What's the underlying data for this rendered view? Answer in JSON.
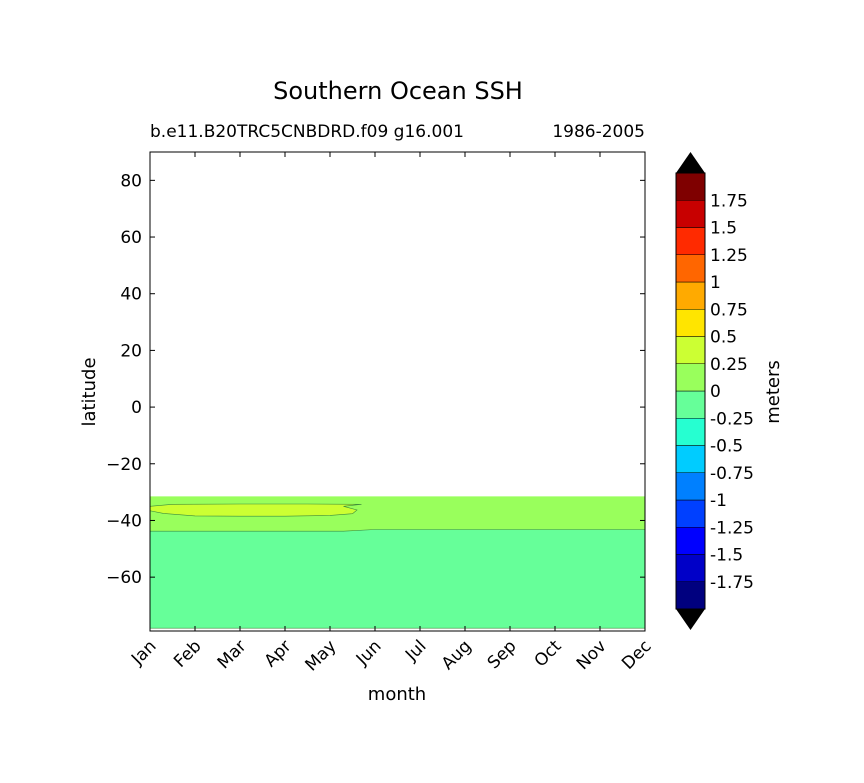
{
  "chart_data": {
    "type": "contour",
    "title": "Southern Ocean SSH",
    "subtitle_left": "b.e11.B20TRC5CNBDRD.f09 g16.001",
    "subtitle_right": "1986-2005",
    "xlabel": "month",
    "ylabel": "latitude",
    "months": [
      "Jan",
      "Feb",
      "Mar",
      "Apr",
      "May",
      "Jun",
      "Jul",
      "Aug",
      "Sep",
      "Oct",
      "Nov",
      "Dec"
    ],
    "ylim": [
      -79,
      90
    ],
    "yticks": [
      80,
      60,
      40,
      20,
      0,
      -20,
      -40,
      -60
    ],
    "ytick_labels": [
      "80",
      "60",
      "40",
      "20",
      "0",
      "−20",
      "−40",
      "−60"
    ],
    "data_lat_max": -31.5,
    "regions": [
      {
        "name": "0 to 0.25 m",
        "level_range": [
          0,
          0.25
        ],
        "color": "#99ff5c",
        "points": [
          [
            0,
            -31.5
          ],
          [
            11,
            -31.5
          ],
          [
            11,
            -43.2
          ],
          [
            5,
            -43.2
          ],
          [
            4.3,
            -43.8
          ],
          [
            0,
            -43.8
          ]
        ]
      },
      {
        "name": "-0.25 to 0 m",
        "level_range": [
          -0.25,
          0
        ],
        "color": "#66ff99",
        "points": [
          [
            0,
            -43.8
          ],
          [
            4.3,
            -43.8
          ],
          [
            5,
            -43.2
          ],
          [
            11,
            -43.2
          ],
          [
            11,
            -78
          ],
          [
            0,
            -78
          ]
        ]
      },
      {
        "name": "0.25 to 0.5 m",
        "level_range": [
          0.25,
          0.5
        ],
        "color": "#ccff33",
        "points": [
          [
            0,
            -35
          ],
          [
            0.5,
            -34.3
          ],
          [
            2,
            -34.2
          ],
          [
            3.5,
            -34.2
          ],
          [
            4.7,
            -34.3
          ],
          [
            4.3,
            -35
          ],
          [
            4.6,
            -36.3
          ],
          [
            4.5,
            -37.6
          ],
          [
            4,
            -38.2
          ],
          [
            3,
            -38.5
          ],
          [
            2,
            -38.5
          ],
          [
            1,
            -38.4
          ],
          [
            0.3,
            -37.5
          ],
          [
            0,
            -36.6
          ]
        ]
      }
    ],
    "colorbar": {
      "label": "meters",
      "levels": [
        -2,
        -1.75,
        -1.5,
        -1.25,
        -1,
        -0.75,
        -0.5,
        -0.25,
        0,
        0.25,
        0.5,
        0.75,
        1,
        1.25,
        1.5,
        1.75,
        2
      ],
      "tick_labels": [
        "1.75",
        "1.5",
        "1.25",
        "1",
        "0.75",
        "0.5",
        "0.25",
        "0",
        "-0.25",
        "-0.5",
        "-0.75",
        "-1",
        "-1.25",
        "-1.5",
        "-1.75"
      ],
      "colors": [
        "#00007f",
        "#0000c8",
        "#0000ff",
        "#0040ff",
        "#0080ff",
        "#00ccff",
        "#26ffd1",
        "#66ff99",
        "#99ff5c",
        "#ccff33",
        "#ffe500",
        "#ffaa00",
        "#ff6600",
        "#ff2a00",
        "#c80000",
        "#7f0000"
      ],
      "extend_min_color": "#000000",
      "extend_max_color": "#000000"
    }
  }
}
